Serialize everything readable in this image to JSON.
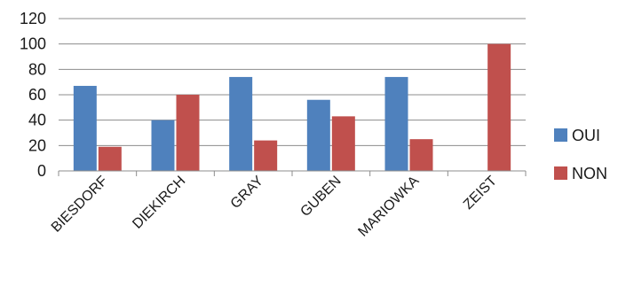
{
  "chart_data": {
    "type": "bar",
    "categories": [
      "BIESDORF",
      "DIEKIRCH",
      "GRAY",
      "GUBEN",
      "MARIOWKA",
      "ZEIST"
    ],
    "series": [
      {
        "name": "OUI",
        "values": [
          67,
          40,
          74,
          56,
          74,
          0
        ]
      },
      {
        "name": "NON",
        "values": [
          19,
          60,
          24,
          43,
          25,
          100
        ]
      }
    ],
    "colors": [
      "#4f81bd",
      "#c0504d"
    ],
    "ylim": [
      0,
      120
    ],
    "yticks": [
      0,
      20,
      40,
      60,
      80,
      100,
      120
    ],
    "grid": true,
    "legend": "right"
  }
}
